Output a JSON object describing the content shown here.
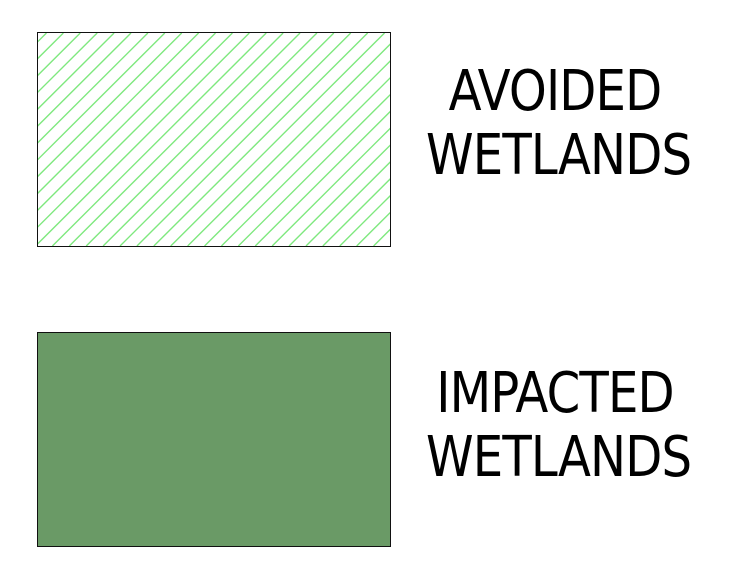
{
  "legend": {
    "items": [
      {
        "line1": "AVOIDED",
        "line2": "WETLANDS",
        "pattern": "diagonal-hatch",
        "stroke_color": "#7ee87e",
        "fill_color": "#ffffff"
      },
      {
        "line1": "IMPACTED",
        "line2": "WETLANDS",
        "pattern": "solid",
        "fill_color": "#6a9a66"
      }
    ],
    "border_color": "#111111"
  }
}
